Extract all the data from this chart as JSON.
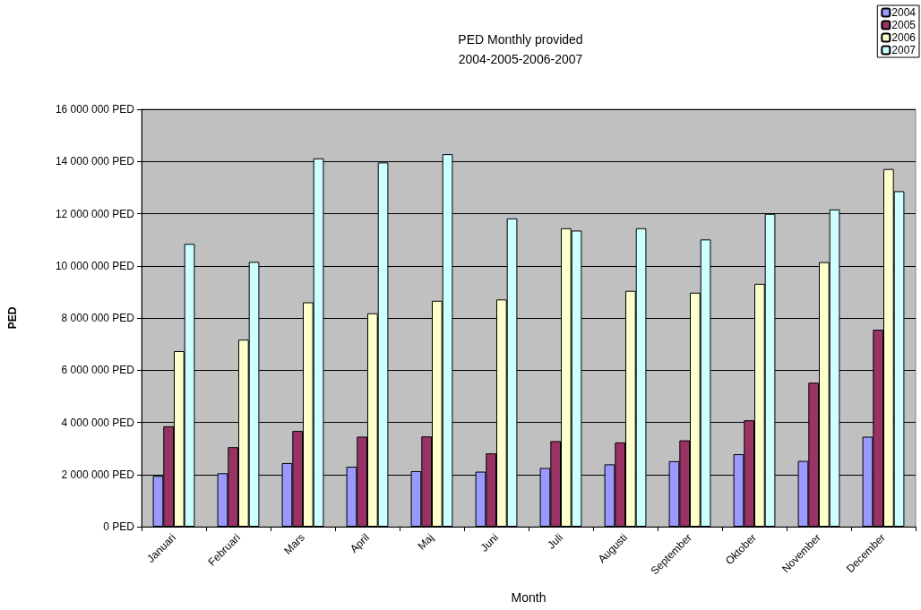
{
  "chart_data": {
    "type": "bar",
    "title": "PED Monthly provided\n2004-2005-2006-2007",
    "xlabel": "Month",
    "ylabel": "PED",
    "categories": [
      "Januari",
      "Februari",
      "Mars",
      "April",
      "Maj",
      "Juni",
      "Juli",
      "Augusti",
      "September",
      "Oktober",
      "November",
      "December"
    ],
    "series": [
      {
        "name": "2004",
        "color": "#9999ff",
        "values": [
          1950000,
          2050000,
          2440000,
          2300000,
          2130000,
          2110000,
          2250000,
          2390000,
          2510000,
          2780000,
          2520000,
          3450000
        ]
      },
      {
        "name": "2005",
        "color": "#993366",
        "values": [
          3850000,
          3050000,
          3670000,
          3450000,
          3460000,
          2810000,
          3280000,
          3230000,
          3310000,
          4080000,
          5520000,
          7550000
        ]
      },
      {
        "name": "2006",
        "color": "#ffffcc",
        "values": [
          6730000,
          7170000,
          8600000,
          8180000,
          8660000,
          8710000,
          11440000,
          9040000,
          8970000,
          9310000,
          10140000,
          13710000
        ]
      },
      {
        "name": "2007",
        "color": "#ccffff",
        "values": [
          10840000,
          10150000,
          14120000,
          13960000,
          14280000,
          11820000,
          11350000,
          11440000,
          11010000,
          11990000,
          12160000,
          12860000
        ]
      }
    ],
    "ylim": [
      0,
      16000000
    ],
    "yticks": [
      {
        "value": 0,
        "label": "0 PED"
      },
      {
        "value": 2000000,
        "label": "2 000 000 PED"
      },
      {
        "value": 4000000,
        "label": "4 000 000 PED"
      },
      {
        "value": 6000000,
        "label": "6 000 000 PED"
      },
      {
        "value": 8000000,
        "label": "8 000 000 PED"
      },
      {
        "value": 10000000,
        "label": "10 000 000 PED"
      },
      {
        "value": 12000000,
        "label": "12 000 000 PED"
      },
      {
        "value": 14000000,
        "label": "14 000 000 PED"
      },
      {
        "value": 16000000,
        "label": "16 000 000 PED"
      }
    ],
    "grid": "y",
    "legend": "top right"
  }
}
